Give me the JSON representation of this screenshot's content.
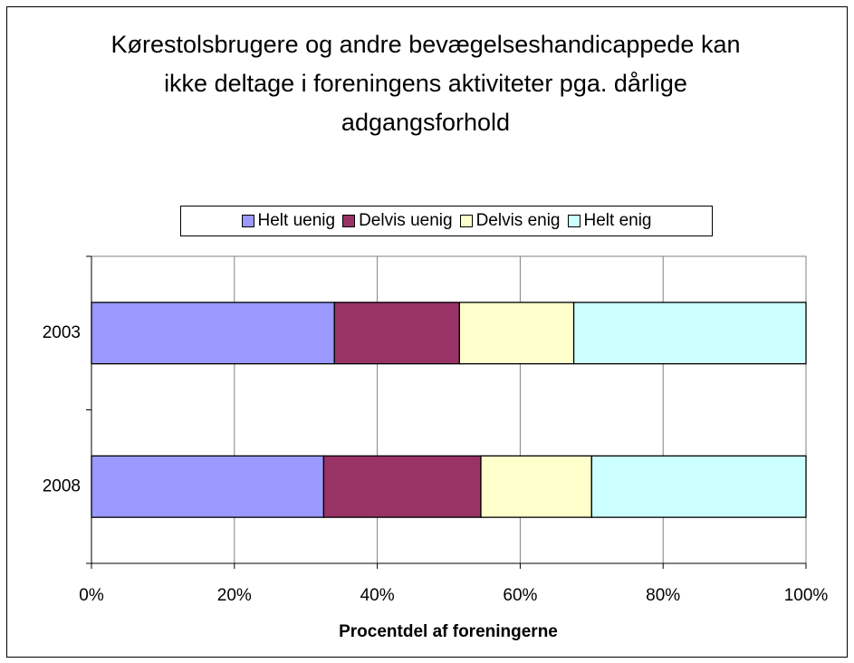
{
  "chart_data": {
    "type": "stacked-bar-horizontal",
    "title": "Kørestolsbrugere og andre bevægelseshandicappede kan ikke deltage i foreningens aktiviteter pga. dårlige adgangsforhold",
    "x_label": "Procentdel af foreningerne",
    "categories": [
      "2003",
      "2008"
    ],
    "series": [
      {
        "name": "Helt uenig",
        "color": "#9999ff",
        "values": [
          34,
          32.5
        ]
      },
      {
        "name": "Delvis uenig",
        "color": "#993366",
        "values": [
          17.5,
          22
        ]
      },
      {
        "name": "Delvis enig",
        "color": "#ffffcc",
        "values": [
          16,
          15.5
        ]
      },
      {
        "name": "Helt enig",
        "color": "#ccffff",
        "values": [
          32.5,
          30
        ]
      }
    ],
    "xlim": [
      0,
      100
    ],
    "xticks": [
      {
        "value": 0,
        "label": "0%"
      },
      {
        "value": 20,
        "label": "20%"
      },
      {
        "value": 40,
        "label": "40%"
      },
      {
        "value": 60,
        "label": "60%"
      },
      {
        "value": 80,
        "label": "80%"
      },
      {
        "value": 100,
        "label": "100%"
      }
    ],
    "grid": true,
    "legend": "top"
  }
}
